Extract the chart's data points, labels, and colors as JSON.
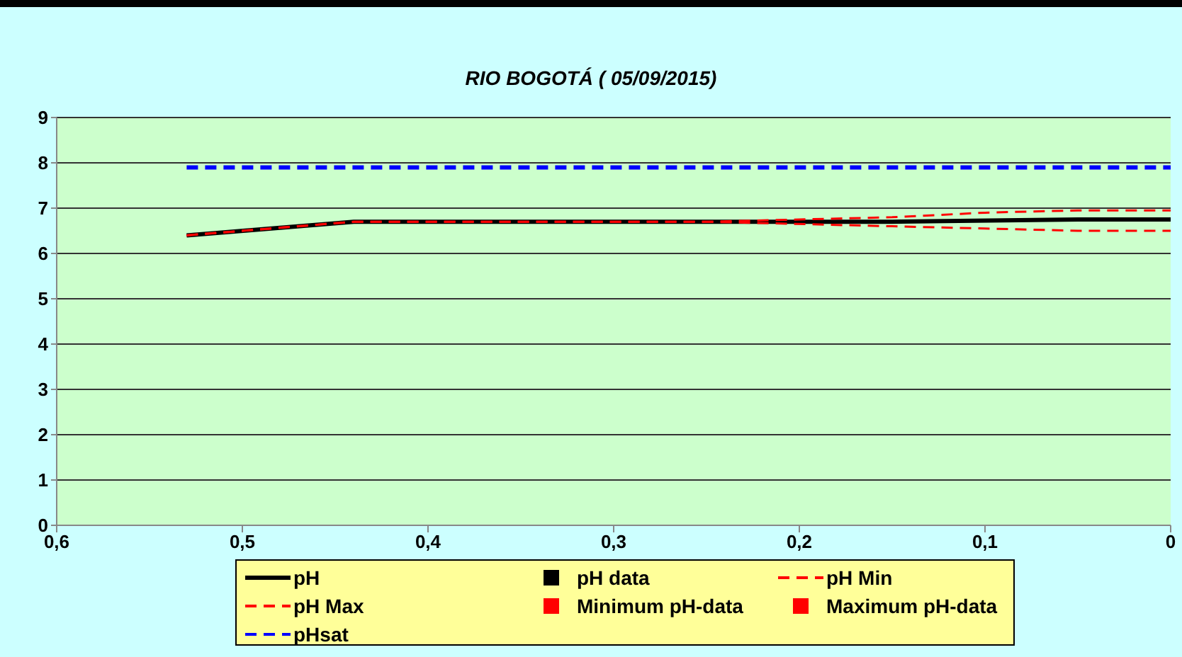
{
  "chart_data": {
    "type": "line",
    "title": "RIO BOGOTÁ ( 05/09/2015)",
    "xlim": [
      0.6,
      0
    ],
    "xticks": [
      {
        "value": 0.6,
        "label": "0,6"
      },
      {
        "value": 0.5,
        "label": "0,5"
      },
      {
        "value": 0.4,
        "label": "0,4"
      },
      {
        "value": 0.3,
        "label": "0,3"
      },
      {
        "value": 0.2,
        "label": "0,2"
      },
      {
        "value": 0.1,
        "label": "0,1"
      },
      0
    ],
    "ylim": [
      0,
      9
    ],
    "yticks": [
      0,
      1,
      2,
      3,
      4,
      5,
      6,
      7,
      8,
      9
    ],
    "grid": "y",
    "legend": "bottom",
    "series": [
      {
        "name": "pH",
        "color": "#000000",
        "line_style": "solid",
        "marker": "none",
        "x": [
          0.53,
          0.44,
          0.35,
          0.25,
          0.15,
          0.05,
          0
        ],
        "values": [
          6.4,
          6.7,
          6.7,
          6.7,
          6.7,
          6.75,
          6.75
        ]
      },
      {
        "name": "pH data",
        "type": "scatter",
        "color": "#000000",
        "marker": "square"
      },
      {
        "name": "pH Min",
        "color": "#ff0000",
        "line_style": "dashed",
        "marker": "none",
        "x": [
          0.53,
          0.44,
          0.35,
          0.25,
          0.15,
          0.1,
          0.05,
          0
        ],
        "values": [
          6.4,
          6.7,
          6.7,
          6.7,
          6.6,
          6.55,
          6.5,
          6.5
        ]
      },
      {
        "name": "pH Max",
        "color": "#ff0000",
        "line_style": "dashed",
        "marker": "none",
        "x": [
          0.53,
          0.44,
          0.35,
          0.25,
          0.15,
          0.1,
          0.05,
          0
        ],
        "values": [
          6.4,
          6.7,
          6.7,
          6.7,
          6.8,
          6.9,
          6.95,
          6.95
        ]
      },
      {
        "name": "Minimum pH-data",
        "type": "scatter",
        "color": "#ff0000",
        "marker": "square"
      },
      {
        "name": "Maximum pH-data",
        "type": "scatter",
        "color": "#ff0000",
        "marker": "square"
      },
      {
        "name": "pHsat",
        "color": "#0000ff",
        "line_style": "dashed",
        "marker": "none",
        "x": [
          0.53,
          0
        ],
        "values": [
          7.9,
          7.9
        ]
      }
    ]
  }
}
